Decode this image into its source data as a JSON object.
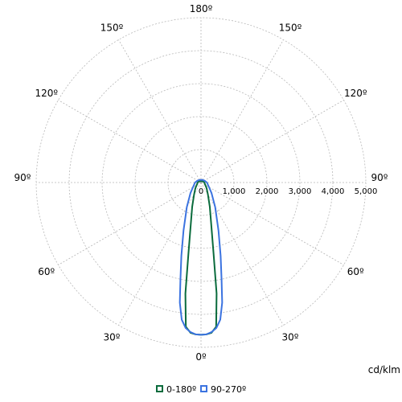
{
  "chart_data": {
    "type": "polar",
    "unit": "cd/klm",
    "radial_ticks": [
      "0",
      "1,000",
      "2,000",
      "3,000",
      "4,000",
      "5,000"
    ],
    "radial_max": 5000,
    "angle_labels": [
      {
        "text": "180º",
        "angle": 180,
        "side": "top"
      },
      {
        "text": "150º",
        "angle": 150,
        "side": "left"
      },
      {
        "text": "150º",
        "angle": 150,
        "side": "right"
      },
      {
        "text": "120º",
        "angle": 120,
        "side": "left"
      },
      {
        "text": "120º",
        "angle": 120,
        "side": "right"
      },
      {
        "text": "90º",
        "angle": 90,
        "side": "left"
      },
      {
        "text": "90º",
        "angle": 90,
        "side": "right"
      },
      {
        "text": "60º",
        "angle": 60,
        "side": "left"
      },
      {
        "text": "60º",
        "angle": 60,
        "side": "right"
      },
      {
        "text": "30º",
        "angle": 30,
        "side": "left"
      },
      {
        "text": "30º",
        "angle": 30,
        "side": "right"
      },
      {
        "text": "0º",
        "angle": 0,
        "side": "bottom"
      }
    ],
    "series": [
      {
        "name": "0-180º",
        "color": "#0a6b3c",
        "angles": [
          0,
          2,
          4,
          6,
          8,
          10,
          15,
          20,
          30,
          45,
          60,
          90,
          120,
          150,
          180
        ],
        "values": [
          4620,
          4610,
          4570,
          4400,
          3400,
          2200,
          1150,
          780,
          420,
          240,
          150,
          100,
          70,
          50,
          40
        ]
      },
      {
        "name": "90-270º",
        "color": "#3b73e0",
        "angles": [
          0,
          2,
          4,
          6,
          8,
          10,
          12,
          15,
          20,
          30,
          45,
          60,
          90,
          120,
          150,
          180
        ],
        "values": [
          4620,
          4610,
          4550,
          4440,
          4200,
          3700,
          3000,
          2300,
          1550,
          860,
          450,
          280,
          180,
          120,
          90,
          80
        ]
      }
    ],
    "grid": true,
    "legend_position": "bottom-center"
  }
}
